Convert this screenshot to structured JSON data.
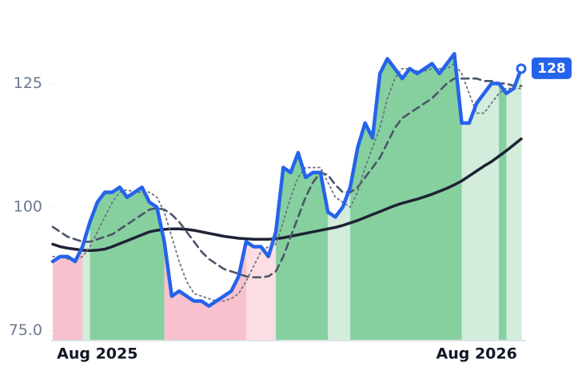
{
  "chart_data": {
    "type": "line",
    "categories": [
      null,
      null,
      null,
      null,
      null,
      null,
      "Aug 2025",
      null,
      null,
      null,
      null,
      null,
      null,
      null,
      null,
      null,
      null,
      null,
      null,
      null,
      null,
      null,
      null,
      null,
      null,
      null,
      null,
      null,
      null,
      null,
      null,
      null,
      null,
      null,
      null,
      null,
      null,
      null,
      null,
      null,
      null,
      null,
      null,
      null,
      null,
      null,
      null,
      null,
      null,
      null,
      null,
      null,
      null,
      null,
      null,
      null,
      null,
      "Aug 2026",
      null,
      null,
      null,
      null,
      null,
      null
    ],
    "series": [
      {
        "color": "#2563eb",
        "values": [
          89,
          90,
          90,
          89,
          92,
          97,
          101,
          103,
          103,
          104,
          102,
          103,
          104,
          101,
          100,
          93,
          82,
          83,
          82,
          81,
          81,
          80,
          81,
          82,
          83,
          86,
          93,
          92,
          92,
          90,
          95,
          108,
          107,
          111,
          106,
          107,
          107,
          99,
          98,
          100,
          104,
          112,
          117,
          114,
          127,
          130,
          128,
          126,
          128,
          127,
          128,
          129,
          127,
          129,
          131,
          117,
          117,
          121,
          123,
          125,
          125,
          123,
          124,
          128
        ]
      },
      {
        "color": "#6b7280",
        "dash": "dotted",
        "values": [
          90,
          90,
          89.5,
          89.5,
          90,
          92,
          95,
          98,
          101,
          103,
          103.5,
          103,
          103,
          103,
          102,
          99,
          94,
          89,
          85,
          82.5,
          82,
          81.5,
          81,
          81,
          81.5,
          82.5,
          85,
          88,
          91,
          92,
          92.5,
          97,
          102,
          106,
          108,
          108,
          108,
          105,
          102,
          101,
          100,
          103,
          108,
          112,
          116,
          122,
          126,
          128,
          128,
          127.5,
          127.5,
          128,
          128,
          128,
          129,
          127,
          123,
          119,
          119,
          121,
          123,
          124,
          124,
          124
        ]
      },
      {
        "color": "#4b5568",
        "dash": "dashed",
        "values": [
          96,
          95,
          94,
          93.5,
          93,
          93,
          93.5,
          94,
          94.5,
          95.5,
          96.5,
          97.5,
          98.5,
          99.5,
          99.8,
          99.5,
          98.5,
          97,
          95,
          93,
          91,
          89.5,
          88.5,
          87.5,
          87,
          86.5,
          86,
          85.8,
          85.8,
          86,
          87,
          90,
          94,
          98,
          102,
          105,
          107,
          106.5,
          104.5,
          103,
          103,
          104,
          106,
          108,
          110,
          113,
          116,
          118,
          119,
          120,
          121,
          122,
          123.5,
          125,
          126,
          126,
          126,
          126,
          125.5,
          125.5,
          125,
          125,
          124.5,
          124.5
        ]
      },
      {
        "color": "#1e2235",
        "values": [
          92.5,
          92,
          91.7,
          91.5,
          91.3,
          91.2,
          91.3,
          91.5,
          92,
          92.6,
          93.2,
          93.8,
          94.4,
          95,
          95.3,
          95.5,
          95.6,
          95.6,
          95.5,
          95.3,
          95,
          94.7,
          94.4,
          94.1,
          93.9,
          93.7,
          93.6,
          93.5,
          93.5,
          93.5,
          93.6,
          93.8,
          94.1,
          94.4,
          94.7,
          95,
          95.3,
          95.6,
          95.9,
          96.3,
          96.8,
          97.3,
          97.9,
          98.5,
          99.1,
          99.7,
          100.3,
          100.8,
          101.2,
          101.6,
          102.1,
          102.6,
          103.2,
          103.8,
          104.5,
          105.3,
          106.3,
          107.3,
          108.3,
          109.2,
          110.3,
          111.4,
          112.6,
          113.8
        ]
      }
    ],
    "ylim": [
      73,
      138
    ],
    "yticks": [
      {
        "value": 75,
        "label": "75.0"
      },
      100,
      125
    ]
  }
}
